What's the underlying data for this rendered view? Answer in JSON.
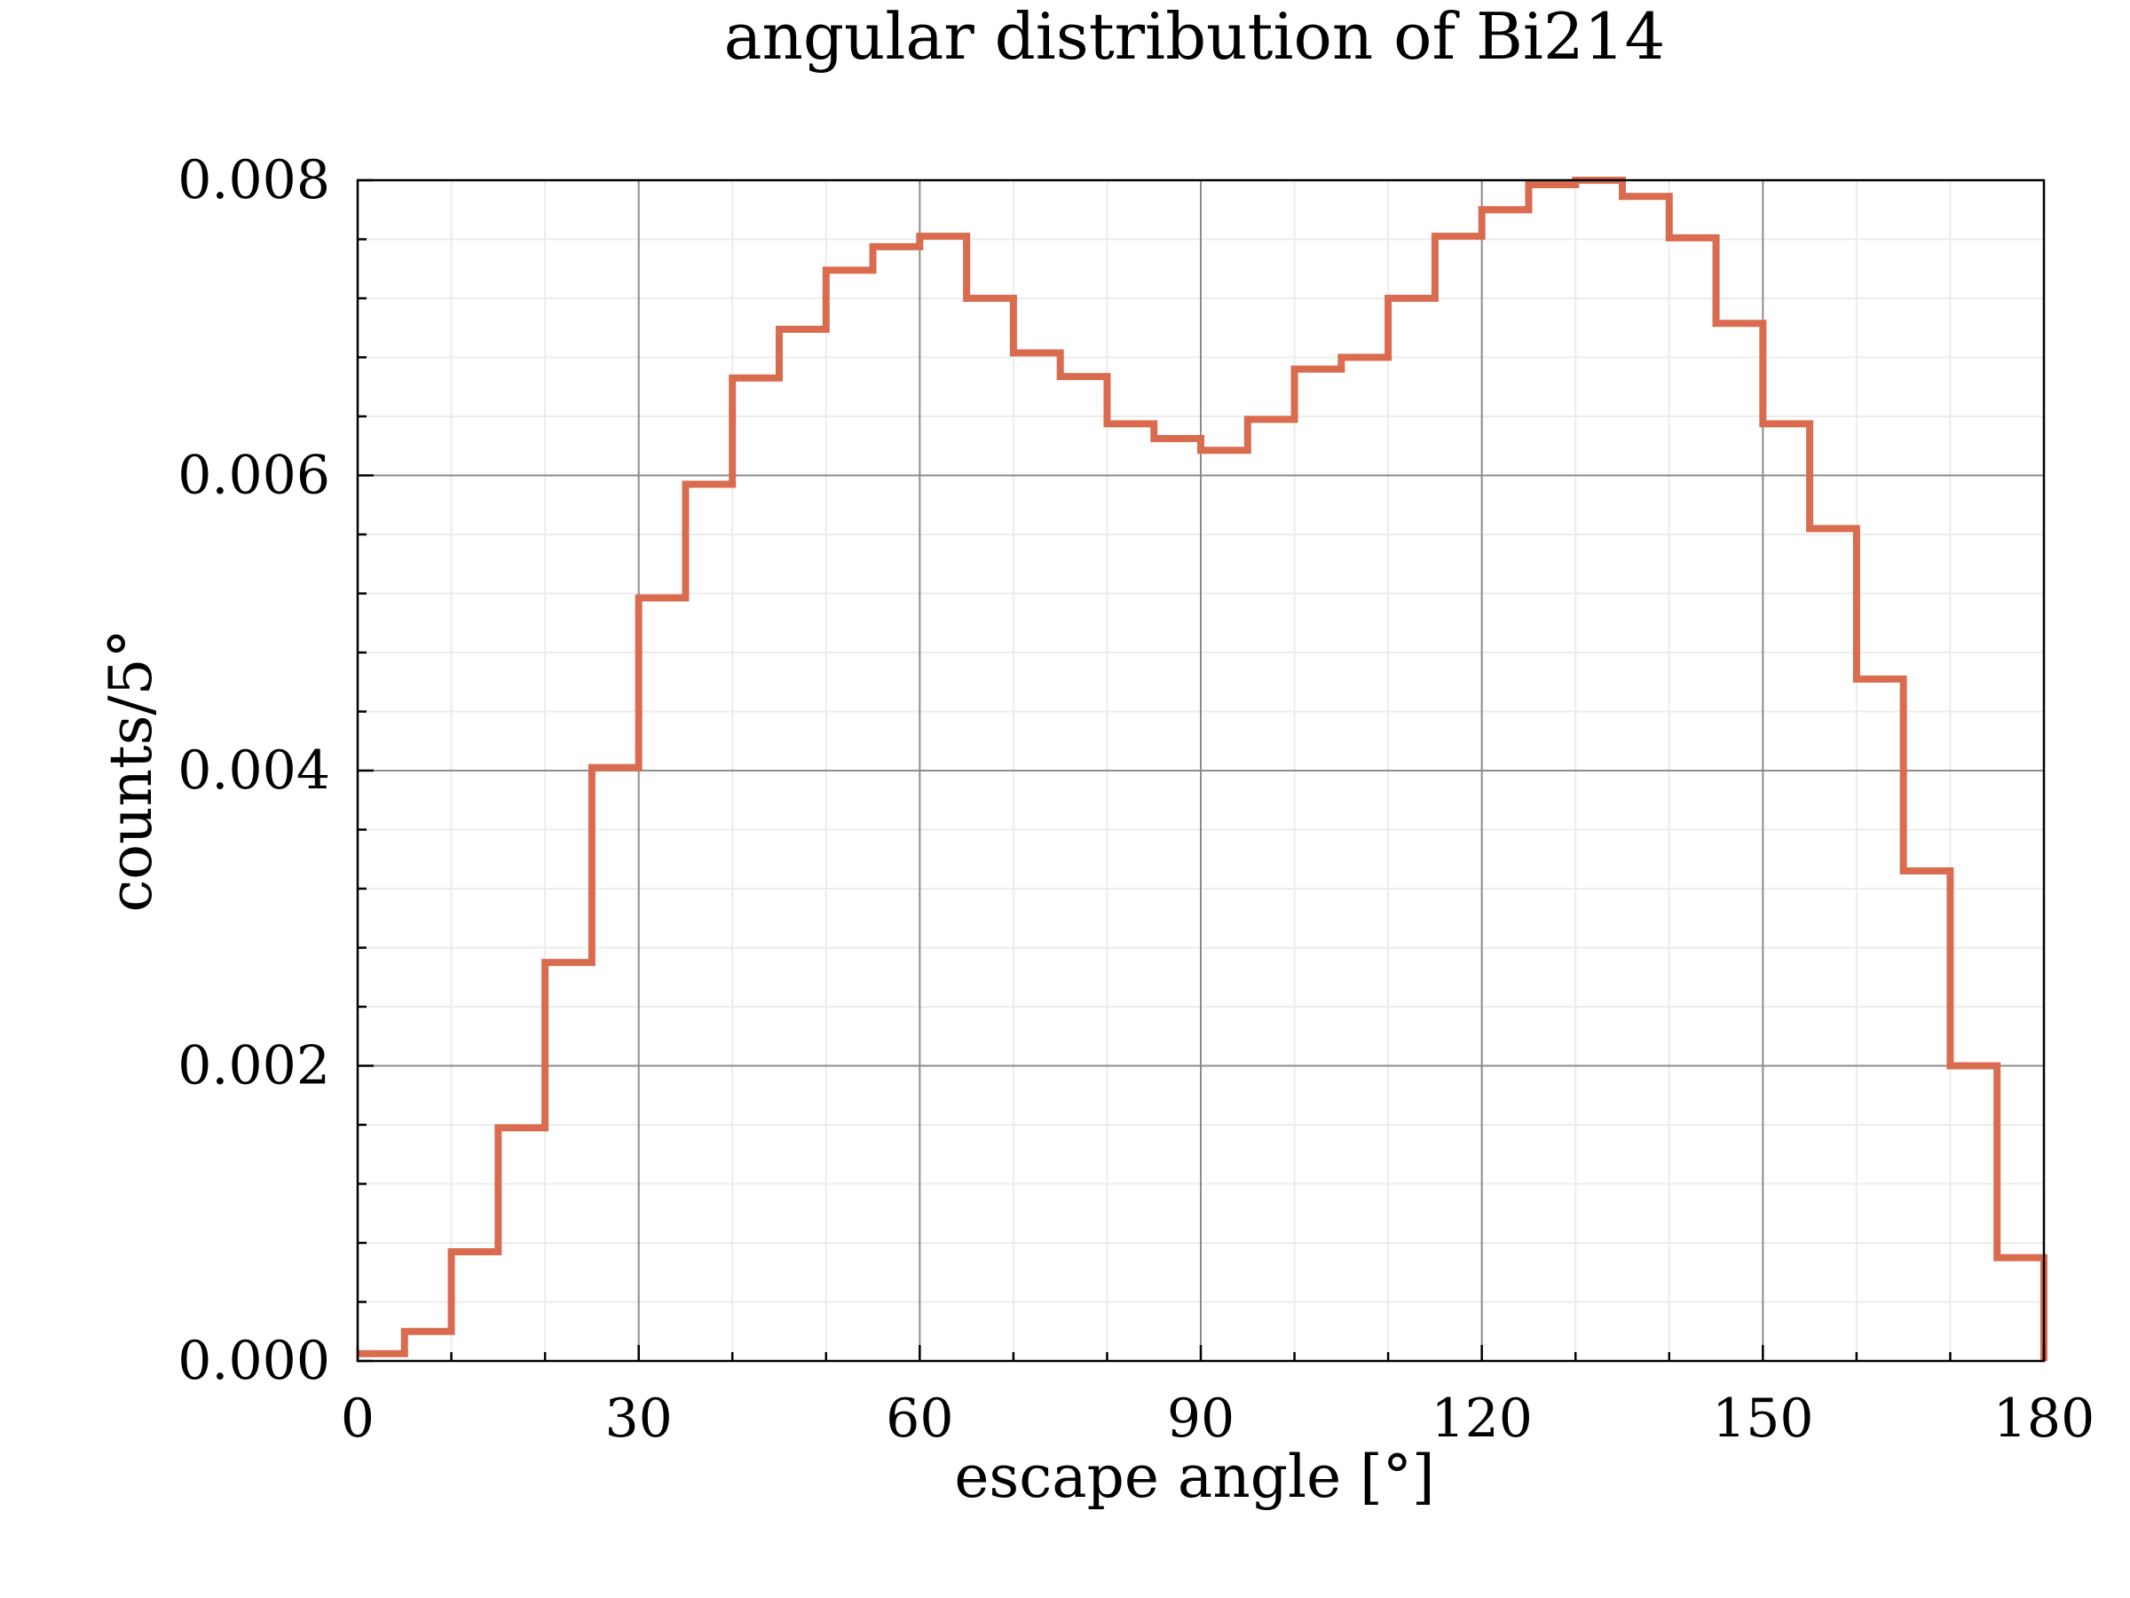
{
  "chart_data": {
    "type": "line",
    "style": "step histogram",
    "title": "angular distribution of Bi214",
    "xlabel": "escape angle [°]",
    "ylabel": "counts/5°",
    "xlim": [
      0,
      180
    ],
    "ylim": [
      0,
      0.008
    ],
    "xticks": [
      0,
      30,
      60,
      90,
      120,
      150,
      180
    ],
    "yticks": [
      0.0,
      0.002,
      0.004,
      0.006,
      0.008
    ],
    "xtick_labels": [
      "0",
      "30",
      "60",
      "90",
      "120",
      "150",
      "180"
    ],
    "ytick_labels": [
      "0.000",
      "0.002",
      "0.004",
      "0.006",
      "0.008"
    ],
    "grid": true,
    "bin_width": 5,
    "bin_edges": [
      0,
      5,
      10,
      15,
      20,
      25,
      30,
      35,
      40,
      45,
      50,
      55,
      60,
      65,
      70,
      75,
      80,
      85,
      90,
      95,
      100,
      105,
      110,
      115,
      120,
      125,
      130,
      135,
      140,
      145,
      150,
      155,
      160,
      165,
      170,
      175,
      180
    ],
    "values": [
      5e-05,
      0.0002,
      0.00074,
      0.00158,
      0.0027,
      0.00402,
      0.00517,
      0.00594,
      0.00666,
      0.00699,
      0.00739,
      0.00755,
      0.00762,
      0.0072,
      0.00683,
      0.00667,
      0.00635,
      0.00625,
      0.00617,
      0.00638,
      0.00672,
      0.0068,
      0.0072,
      0.00762,
      0.0078,
      0.00797,
      0.008,
      0.00789,
      0.00761,
      0.00703,
      0.00635,
      0.00564,
      0.00462,
      0.00332,
      0.002,
      0.0007
    ],
    "line_color": "#d96b4e"
  }
}
